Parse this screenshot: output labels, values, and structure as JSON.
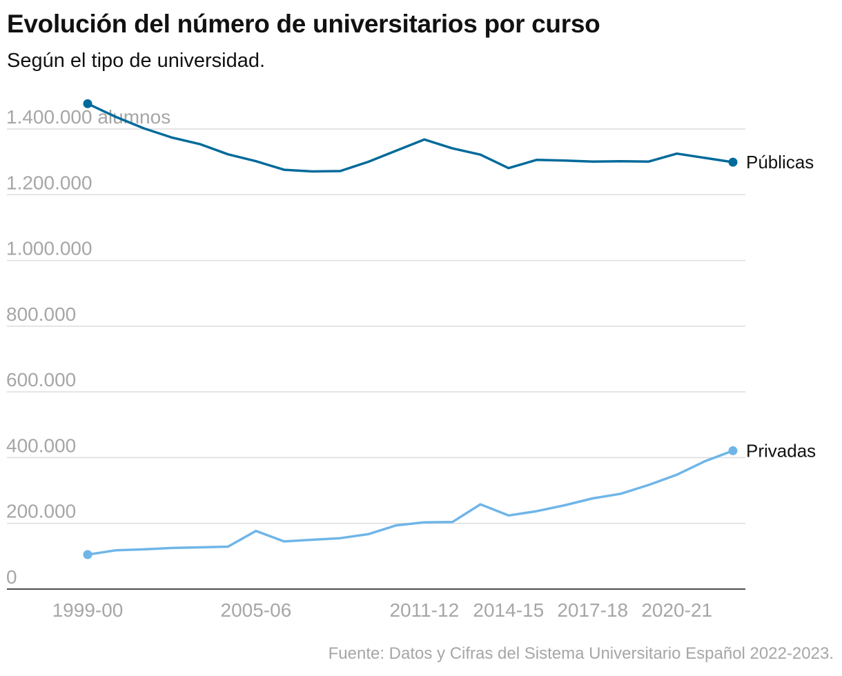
{
  "title": "Evolución del número de universitarios por curso",
  "subtitle": "Según el tipo de universidad.",
  "source": "Fuente: Datos y Cifras del Sistema Universitario Español 2022-2023.",
  "chart_data": {
    "type": "line",
    "title": "Evolución del número de universitarios por curso",
    "subtitle": "Según el tipo de universidad.",
    "x": [
      "1999-00",
      "2000-01",
      "2001-02",
      "2002-03",
      "2003-04",
      "2004-05",
      "2005-06",
      "2006-07",
      "2007-08",
      "2008-09",
      "2009-10",
      "2010-11",
      "2011-12",
      "2012-13",
      "2013-14",
      "2014-15",
      "2015-16",
      "2016-17",
      "2017-18",
      "2018-19",
      "2019-20",
      "2020-21",
      "2021-22",
      "2022-23"
    ],
    "x_tick_labels": [
      "1999-00",
      "2005-06",
      "2011-12",
      "2014-15",
      "2017-18",
      "2020-21"
    ],
    "y_unit_label": "alumnos",
    "y_ticks": [
      0,
      200000,
      400000,
      600000,
      800000,
      1000000,
      1200000,
      1400000
    ],
    "y_tick_labels": [
      "0",
      "200.000",
      "400.000",
      "600.000",
      "800.000",
      "1.000.000",
      "1.200.000",
      "1.400.000"
    ],
    "ylim": [
      0,
      1400000
    ],
    "grid": true,
    "legend": "end-of-line labels",
    "series": [
      {
        "name": "Públicas",
        "color": "#006a9a",
        "values": [
          1477000,
          1437000,
          1402000,
          1374000,
          1354000,
          1323000,
          1302000,
          1276000,
          1271000,
          1272000,
          1300000,
          1334000,
          1368000,
          1341000,
          1322000,
          1281000,
          1306000,
          1304000,
          1301000,
          1302000,
          1301000,
          1325000,
          1312000,
          1299000
        ]
      },
      {
        "name": "Privadas",
        "color": "#6fb5e8",
        "values": [
          105000,
          118000,
          121000,
          125000,
          127000,
          129000,
          177000,
          145000,
          150000,
          155000,
          167000,
          194000,
          203000,
          204000,
          258000,
          224000,
          237000,
          255000,
          276000,
          290000,
          317000,
          348000,
          389000,
          421000
        ]
      }
    ]
  }
}
